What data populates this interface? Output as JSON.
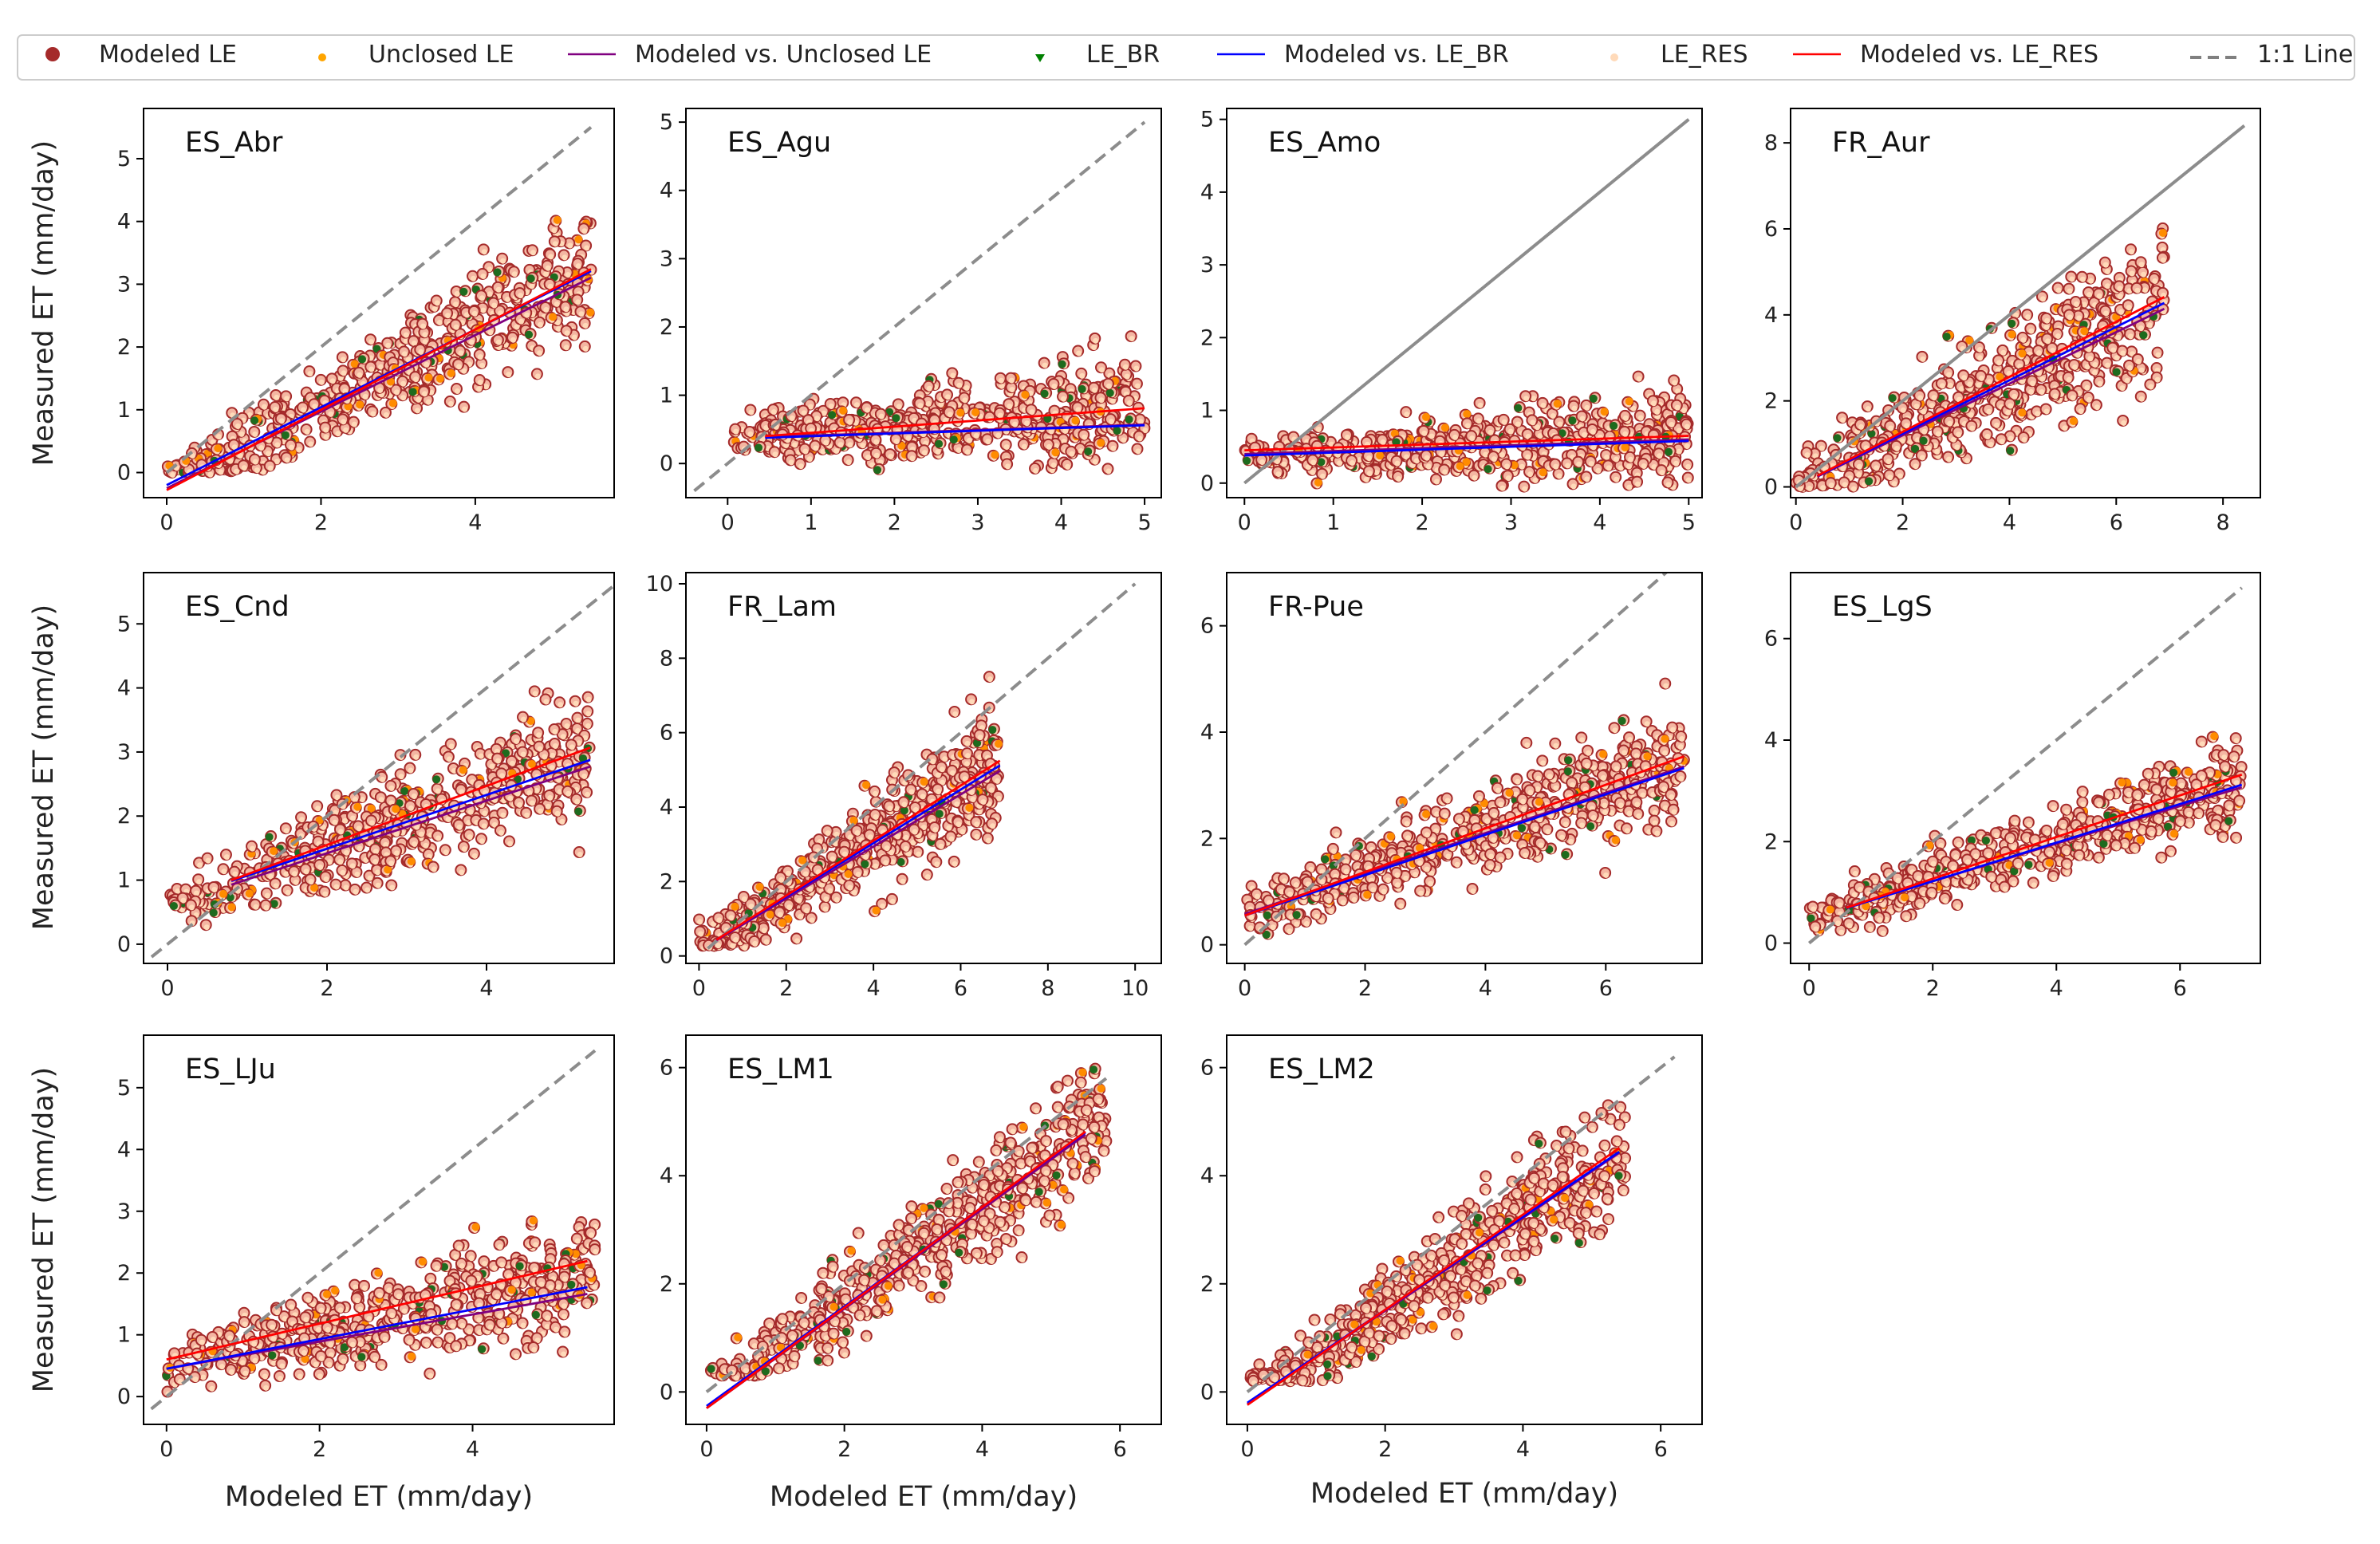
{
  "legend": {
    "items": [
      {
        "label": "Modeled LE",
        "kind": "dot",
        "color": "#a52a2a"
      },
      {
        "label": "Unclosed LE",
        "kind": "smalldot",
        "color": "#ffa500"
      },
      {
        "label": "Modeled vs. Unclosed LE",
        "kind": "line",
        "color": "#800080"
      },
      {
        "label": "LE_BR",
        "kind": "tri",
        "color": "#008000"
      },
      {
        "label": "Modeled vs. LE_BR",
        "kind": "line",
        "color": "#0000ff"
      },
      {
        "label": "LE_RES",
        "kind": "smalldot",
        "color": "#ffdab9"
      },
      {
        "label": "Modeled vs. LE_RES",
        "kind": "line",
        "color": "#ff0000"
      },
      {
        "label": "1:1 Line",
        "kind": "dash",
        "color": "#808080"
      }
    ]
  },
  "colors": {
    "marker_edge": "#a52a2a",
    "marker_fill": "#f4b6a2",
    "unclosed": "#ff8c00",
    "le_br": "#1e6b1e",
    "le_res": "#ffdab9",
    "fit_unclosed": "#800080",
    "fit_br": "#0000ff",
    "fit_res": "#ff0000",
    "one_to_one": "#8c8c8c"
  },
  "axis_labels": {
    "y": "Measured ET (mm/day)",
    "x": "Modeled ET (mm/day)"
  },
  "chart_data": [
    {
      "type": "scatter",
      "title": "ES_Abr",
      "xlim": [
        -0.3,
        5.8
      ],
      "ylim": [
        -0.4,
        5.8
      ],
      "xticks": [
        0,
        2,
        4
      ],
      "yticks": [
        0,
        1,
        2,
        3,
        4,
        5
      ],
      "one_to_one": {
        "x": [
          0,
          5.5
        ],
        "style": "dashed"
      },
      "fit_range": [
        0,
        5.5
      ],
      "fits": {
        "unclosed": [
          0.61,
          -0.25
        ],
        "br": [
          0.62,
          -0.2
        ],
        "res": [
          0.64,
          -0.28
        ]
      },
      "cloud": {
        "xmax": 5.5,
        "slope": 0.62,
        "intercept": -0.2,
        "spread": 0.9,
        "ymin": 0.0,
        "ymax": 5.3
      }
    },
    {
      "type": "scatter",
      "title": "ES_Agu",
      "xlim": [
        -0.5,
        5.2
      ],
      "ylim": [
        -0.5,
        5.2
      ],
      "xticks": [
        0,
        1,
        2,
        3,
        4,
        5
      ],
      "yticks": [
        0,
        1,
        2,
        3,
        4,
        5
      ],
      "one_to_one": {
        "x": [
          -0.4,
          5.0
        ],
        "style": "dashed"
      },
      "fit_range": [
        0.45,
        5.0
      ],
      "fits": {
        "unclosed": [
          0.04,
          0.37
        ],
        "br": [
          0.04,
          0.36
        ],
        "res": [
          0.09,
          0.36
        ]
      },
      "cloud": {
        "xmax": 5.0,
        "slope": 0.09,
        "intercept": 0.35,
        "spread": 0.75,
        "ymin": -0.4,
        "ymax": 2.7
      }
    },
    {
      "type": "scatter",
      "title": "ES_Amo",
      "xlim": [
        -0.2,
        5.15
      ],
      "ylim": [
        -0.2,
        5.15
      ],
      "xticks": [
        0,
        1,
        2,
        3,
        4,
        5
      ],
      "yticks": [
        0,
        1,
        2,
        3,
        4,
        5
      ],
      "one_to_one": {
        "x": [
          0,
          5.0
        ],
        "style": "solid"
      },
      "fit_range": [
        0,
        5.0
      ],
      "fits": {
        "unclosed": [
          0.04,
          0.4
        ],
        "br": [
          0.04,
          0.38
        ],
        "res": [
          0.04,
          0.45
        ]
      },
      "cloud": {
        "xmax": 5.0,
        "slope": 0.06,
        "intercept": 0.35,
        "spread": 0.55,
        "ymin": -0.05,
        "ymax": 2.4
      }
    },
    {
      "type": "scatter",
      "title": "FR_Aur",
      "xlim": [
        -0.1,
        8.7
      ],
      "ylim": [
        -0.25,
        8.8
      ],
      "xticks": [
        0,
        2,
        4,
        6,
        8
      ],
      "yticks": [
        0,
        2,
        4,
        6,
        8
      ],
      "one_to_one": {
        "x": [
          0,
          8.4
        ],
        "style": "solid"
      },
      "fit_range": [
        0.4,
        6.9
      ],
      "fits": {
        "unclosed": [
          0.6,
          0.0
        ],
        "br": [
          0.62,
          0.0
        ],
        "res": [
          0.64,
          0.0
        ]
      },
      "cloud": {
        "xmax": 6.9,
        "slope": 0.62,
        "intercept": 0.0,
        "spread": 1.6,
        "ymin": 0.0,
        "ymax": 8.3
      }
    },
    {
      "type": "scatter",
      "title": "ES_Cnd",
      "xlim": [
        -0.3,
        5.6
      ],
      "ylim": [
        -0.3,
        5.8
      ],
      "xticks": [
        0,
        2,
        4
      ],
      "yticks": [
        0,
        1,
        2,
        3,
        4,
        5
      ],
      "one_to_one": {
        "x": [
          -0.2,
          5.6
        ],
        "style": "dashed"
      },
      "fit_range": [
        0.8,
        5.3
      ],
      "fits": {
        "unclosed": [
          0.41,
          0.6
        ],
        "br": [
          0.42,
          0.65
        ],
        "res": [
          0.46,
          0.63
        ]
      },
      "cloud": {
        "xmax": 5.3,
        "slope": 0.44,
        "intercept": 0.62,
        "spread": 0.9,
        "ymin": -0.1,
        "ymax": 5.6
      }
    },
    {
      "type": "scatter",
      "title": "FR_Lam",
      "xlim": [
        -0.3,
        10.6
      ],
      "ylim": [
        -0.2,
        10.3
      ],
      "xticks": [
        0,
        2,
        4,
        6,
        8,
        10
      ],
      "yticks": [
        0,
        2,
        4,
        6,
        8,
        10
      ],
      "one_to_one": {
        "x": [
          0.2,
          10
        ],
        "style": "dashed"
      },
      "fit_range": [
        0.4,
        6.9
      ],
      "fits": {
        "unclosed": [
          0.7,
          0.14
        ],
        "br": [
          0.72,
          0.15
        ],
        "res": [
          0.74,
          0.14
        ]
      },
      "cloud": {
        "xmax": 6.9,
        "slope": 0.72,
        "intercept": 0.15,
        "spread": 1.5,
        "ymin": 0.2,
        "ymax": 10.1
      }
    },
    {
      "type": "scatter",
      "title": "FR-Pue",
      "xlim": [
        -0.3,
        7.6
      ],
      "ylim": [
        -0.35,
        7.0
      ],
      "xticks": [
        0,
        2,
        4,
        6
      ],
      "yticks": [
        0,
        2,
        4,
        6
      ],
      "one_to_one": {
        "x": [
          0,
          7.3
        ],
        "style": "dashed"
      },
      "fit_range": [
        0,
        7.3
      ],
      "fits": {
        "unclosed": [
          0.38,
          0.58
        ],
        "br": [
          0.38,
          0.55
        ],
        "res": [
          0.41,
          0.55
        ]
      },
      "cloud": {
        "xmax": 7.3,
        "slope": 0.4,
        "intercept": 0.56,
        "spread": 1.1,
        "ymin": 0.0,
        "ymax": 5.9
      }
    },
    {
      "type": "scatter",
      "title": "ES_LgS",
      "xlim": [
        -0.3,
        7.3
      ],
      "ylim": [
        -0.4,
        7.3
      ],
      "xticks": [
        0,
        2,
        4,
        6
      ],
      "yticks": [
        0,
        2,
        4,
        6
      ],
      "one_to_one": {
        "x": [
          0,
          7.0
        ],
        "style": "dashed"
      },
      "fit_range": [
        0.6,
        7.0
      ],
      "fits": {
        "unclosed": [
          0.37,
          0.48
        ],
        "br": [
          0.38,
          0.46
        ],
        "res": [
          0.41,
          0.45
        ]
      },
      "cloud": {
        "xmax": 7.0,
        "slope": 0.39,
        "intercept": 0.47,
        "spread": 0.85,
        "ymin": 0.0,
        "ymax": 4.5
      }
    },
    {
      "type": "scatter",
      "title": "ES_LJu",
      "xlim": [
        -0.3,
        5.85
      ],
      "ylim": [
        -0.45,
        5.85
      ],
      "xticks": [
        0,
        2,
        4
      ],
      "yticks": [
        0,
        1,
        2,
        3,
        4,
        5
      ],
      "one_to_one": {
        "x": [
          -0.2,
          5.6
        ],
        "style": "dashed"
      },
      "fit_range": [
        0,
        5.5
      ],
      "fits": {
        "unclosed": [
          0.22,
          0.45
        ],
        "br": [
          0.24,
          0.45
        ],
        "res": [
          0.29,
          0.6
        ]
      },
      "cloud": {
        "xmax": 5.6,
        "slope": 0.27,
        "intercept": 0.5,
        "spread": 0.9,
        "ymin": -0.3,
        "ymax": 4.5
      }
    },
    {
      "type": "scatter",
      "title": "ES_LM1",
      "xlim": [
        -0.3,
        6.6
      ],
      "ylim": [
        -0.6,
        6.6
      ],
      "xticks": [
        0,
        2,
        4,
        6
      ],
      "yticks": [
        0,
        2,
        4,
        6
      ],
      "one_to_one": {
        "x": [
          0,
          5.8
        ],
        "style": "dashed"
      },
      "fit_range": [
        0,
        5.5
      ],
      "fits": {
        "unclosed": [
          0.92,
          -0.3
        ],
        "br": [
          0.92,
          -0.26
        ],
        "res": [
          0.93,
          -0.3
        ]
      },
      "cloud": {
        "xmax": 5.8,
        "slope": 0.92,
        "intercept": -0.2,
        "spread": 1.1,
        "ymin": 0.3,
        "ymax": 6.3
      }
    },
    {
      "type": "scatter",
      "title": "ES_LM2",
      "xlim": [
        -0.3,
        6.6
      ],
      "ylim": [
        -0.6,
        6.6
      ],
      "xticks": [
        0,
        2,
        4,
        6
      ],
      "yticks": [
        0,
        2,
        4,
        6
      ],
      "one_to_one": {
        "x": [
          0,
          6.2
        ],
        "style": "dashed"
      },
      "fit_range": [
        0,
        5.4
      ],
      "fits": {
        "unclosed": [
          0.86,
          -0.22
        ],
        "br": [
          0.86,
          -0.2
        ],
        "res": [
          0.88,
          -0.24
        ]
      },
      "cloud": {
        "xmax": 5.5,
        "slope": 0.86,
        "intercept": -0.2,
        "spread": 1.1,
        "ymin": 0.2,
        "ymax": 6.3
      }
    }
  ]
}
